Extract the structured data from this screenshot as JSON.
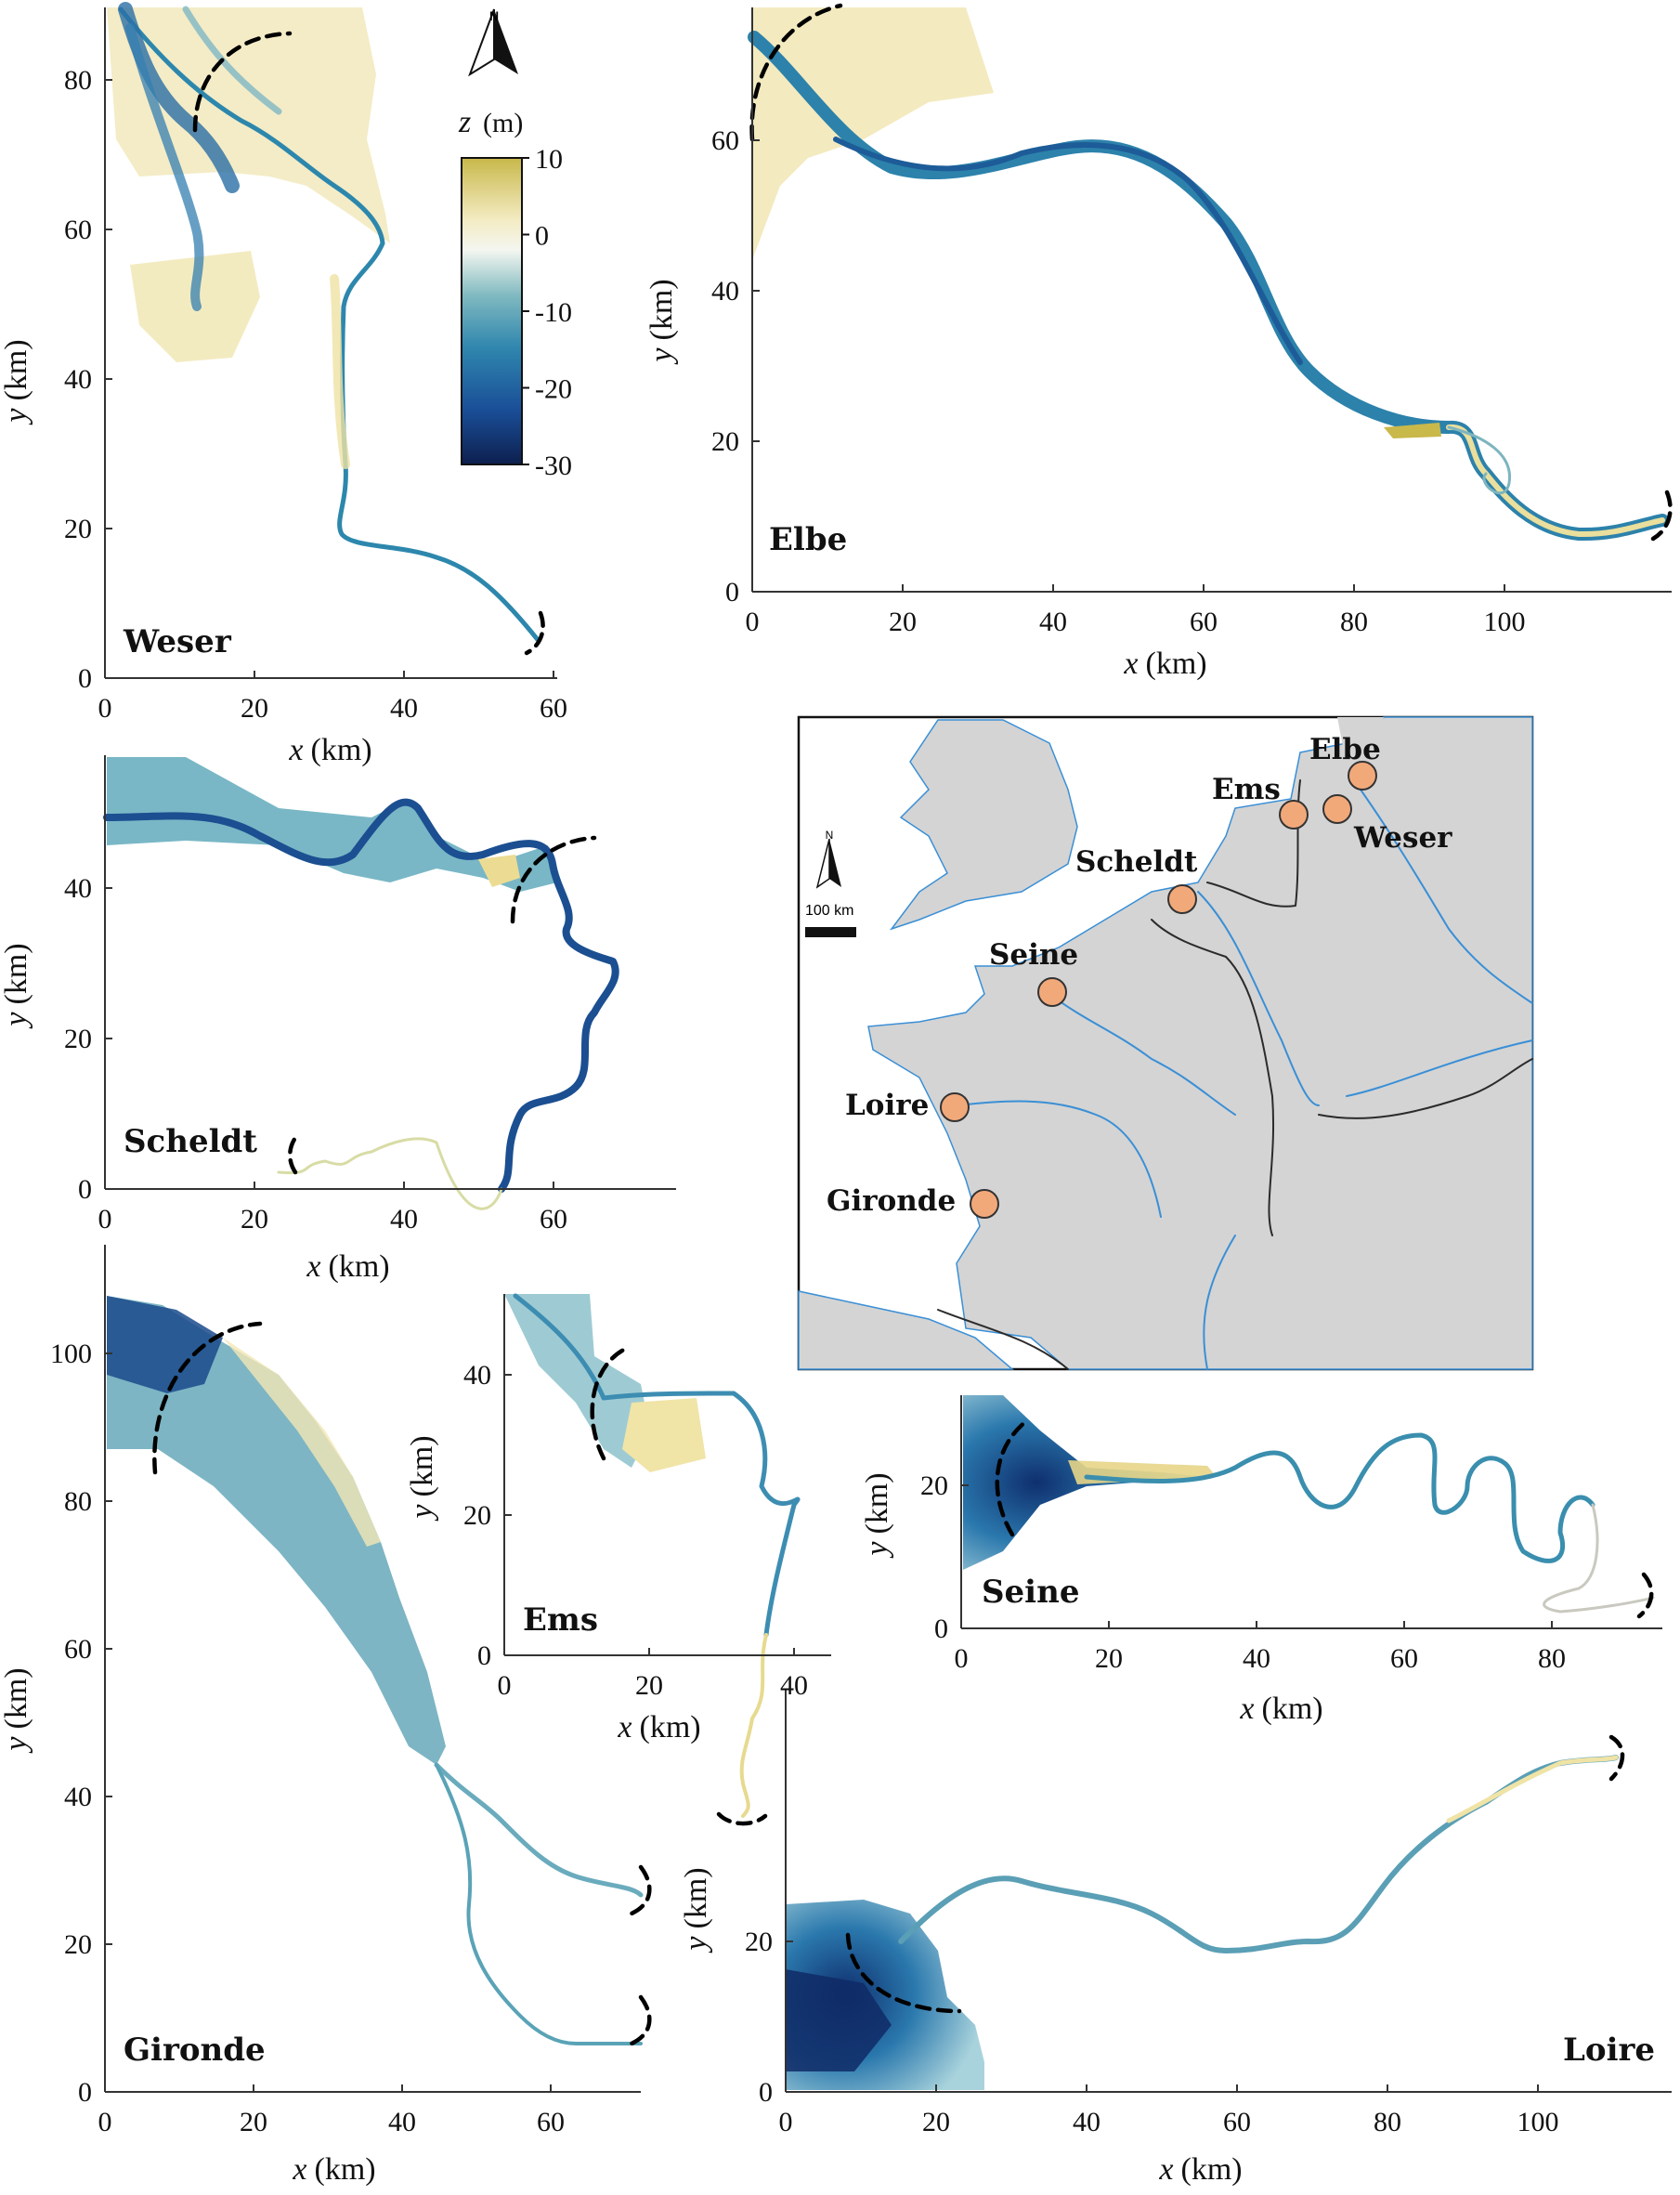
{
  "colorbar": {
    "label_var": "z",
    "label_unit": "(m)",
    "ticks": [
      "10",
      "0",
      "-10",
      "-20",
      "-30"
    ],
    "colors": [
      "#c8b84a",
      "#f3ebc2",
      "#f4f6f0",
      "#7fb9c0",
      "#2f86ae",
      "#1a4f98",
      "#0d1f4e"
    ]
  },
  "north_label": "N",
  "axis_labels": {
    "x_var": "x",
    "y_var": "y",
    "unit": "(km)"
  },
  "panels": [
    {
      "name": "Weser",
      "xticks": [
        "0",
        "20",
        "40",
        "60"
      ],
      "yticks": [
        "0",
        "20",
        "40",
        "60",
        "80"
      ]
    },
    {
      "name": "Elbe",
      "xticks": [
        "0",
        "20",
        "40",
        "60",
        "80",
        "100"
      ],
      "yticks": [
        "0",
        "20",
        "40",
        "60"
      ]
    },
    {
      "name": "Scheldt",
      "xticks": [
        "0",
        "20",
        "40",
        "60"
      ],
      "yticks": [
        "0",
        "20",
        "40"
      ]
    },
    {
      "name": "Gironde",
      "xticks": [
        "0",
        "20",
        "40",
        "60"
      ],
      "yticks": [
        "0",
        "20",
        "40",
        "60",
        "80",
        "100"
      ]
    },
    {
      "name": "Ems",
      "xticks": [
        "0",
        "20",
        "40"
      ],
      "yticks": [
        "0",
        "20",
        "40"
      ]
    },
    {
      "name": "Seine",
      "xticks": [
        "0",
        "20",
        "40",
        "60",
        "80"
      ],
      "yticks": [
        "0",
        "20"
      ]
    },
    {
      "name": "Loire",
      "xticks": [
        "0",
        "20",
        "40",
        "60",
        "80",
        "100"
      ],
      "yticks": [
        "0",
        "20"
      ]
    }
  ],
  "map": {
    "scale_label": "100 km",
    "north_label": "N",
    "colors": {
      "sea": "#ffffff",
      "land": "#d4d4d4",
      "rivers": "#3a8fd6",
      "borders": "#2b2b2b",
      "marker": "#f2a97a"
    },
    "estuaries": [
      {
        "name": "Elbe"
      },
      {
        "name": "Ems"
      },
      {
        "name": "Weser"
      },
      {
        "name": "Scheldt"
      },
      {
        "name": "Seine"
      },
      {
        "name": "Loire"
      },
      {
        "name": "Gironde"
      }
    ]
  }
}
